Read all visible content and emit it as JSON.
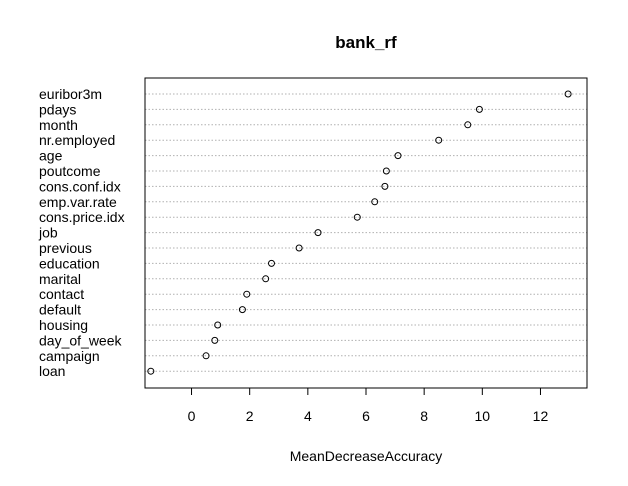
{
  "chart_data": {
    "type": "scatter",
    "title": "bank_rf",
    "xlabel": "MeanDecreaseAccuracy",
    "ylabel": "",
    "xlim": [
      -1.6,
      13.6
    ],
    "xticks": [
      0,
      2,
      4,
      6,
      8,
      10,
      12
    ],
    "categories": [
      "euribor3m",
      "pdays",
      "month",
      "nr.employed",
      "age",
      "poutcome",
      "cons.conf.idx",
      "emp.var.rate",
      "cons.price.idx",
      "job",
      "previous",
      "education",
      "marital",
      "contact",
      "default",
      "housing",
      "day_of_week",
      "campaign",
      "loan"
    ],
    "values": [
      12.95,
      9.9,
      9.5,
      8.5,
      7.1,
      6.7,
      6.65,
      6.3,
      5.7,
      4.35,
      3.7,
      2.75,
      2.55,
      1.9,
      1.75,
      0.9,
      0.8,
      0.5,
      -1.4
    ],
    "grid": "dotted horizontal lines per variable",
    "legend": "none",
    "colors": {
      "point": "#000000",
      "grid": "#b0b0b0",
      "axis": "#000000"
    }
  }
}
